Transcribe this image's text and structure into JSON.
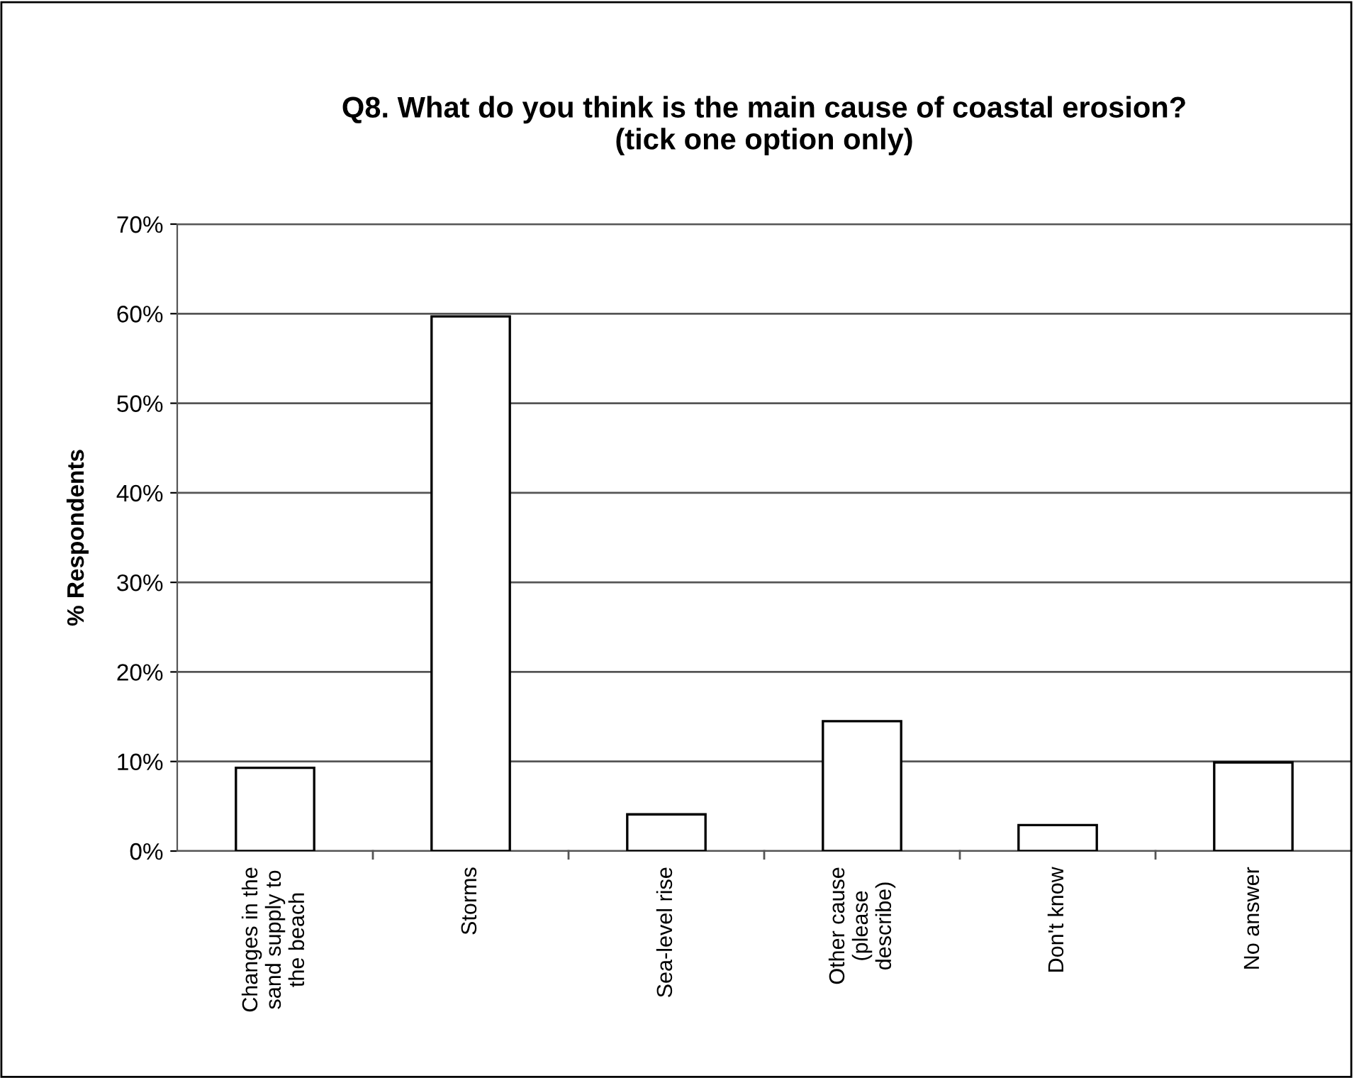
{
  "chart_data": {
    "type": "bar",
    "title": "Q8. What do you think is the main cause of coastal erosion?\n(tick one option only)",
    "ylabel": "% Respondents",
    "categories": [
      "Changes in the\nsand supply to\nthe beach",
      "Storms",
      "Sea-level rise",
      "Other cause\n(please\ndescribe)",
      "Don't know",
      "No answer"
    ],
    "values": [
      9.3,
      59.7,
      4.1,
      14.5,
      2.9,
      9.9
    ],
    "color": "#ffffff",
    "ylim": [
      0,
      70
    ],
    "yticks": [
      {
        "value": 0,
        "label": "0%"
      },
      {
        "value": 10,
        "label": "10%"
      },
      {
        "value": 20,
        "label": "20%"
      },
      {
        "value": 30,
        "label": "30%"
      },
      {
        "value": 40,
        "label": "40%"
      },
      {
        "value": 50,
        "label": "50%"
      },
      {
        "value": 60,
        "label": "60%"
      },
      {
        "value": 70,
        "label": "70%"
      }
    ],
    "grid": "y",
    "legend": false
  }
}
